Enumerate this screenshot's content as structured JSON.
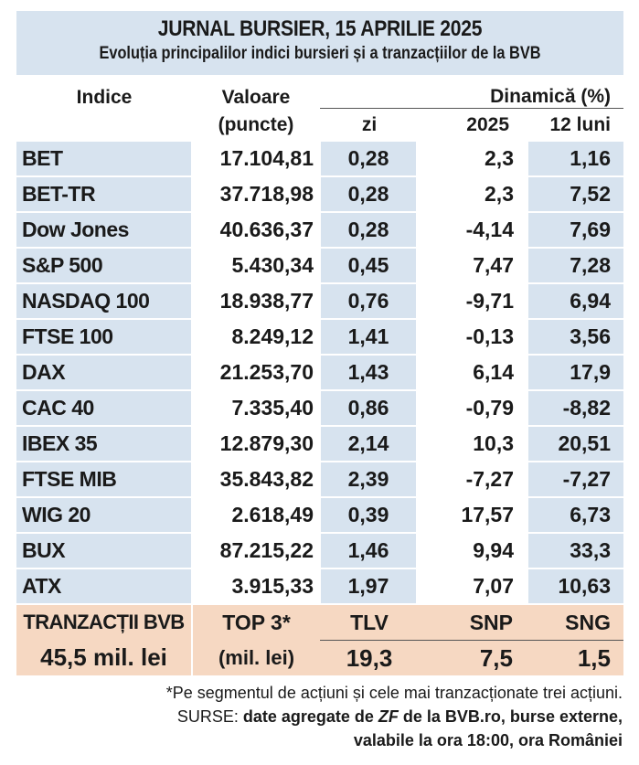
{
  "header": {
    "title": "JURNAL BURSIER, 15 APRILIE 2025",
    "subtitle": "Evoluția principalilor indici bursieri și a tranzacțiilor de la BVB"
  },
  "columns": {
    "indice": "Indice",
    "valoare": "Valoare",
    "valoare_unit": "(puncte)",
    "dinamica": "Dinamică (%)",
    "zi": "zi",
    "ytd": "2025",
    "m12": "12 luni"
  },
  "rows": [
    {
      "name": "BET",
      "value": "17.104,81",
      "zi": "0,28",
      "ytd": "2,3",
      "m12": "1,16"
    },
    {
      "name": "BET-TR",
      "value": "37.718,98",
      "zi": "0,28",
      "ytd": "2,3",
      "m12": "7,52"
    },
    {
      "name": "Dow Jones",
      "value": "40.636,37",
      "zi": "0,28",
      "ytd": "-4,14",
      "m12": "7,69"
    },
    {
      "name": "S&P 500",
      "value": "5.430,34",
      "zi": "0,45",
      "ytd": "7,47",
      "m12": "7,28"
    },
    {
      "name": "NASDAQ 100",
      "value": "18.938,77",
      "zi": "0,76",
      "ytd": "-9,71",
      "m12": "6,94"
    },
    {
      "name": "FTSE 100",
      "value": "8.249,12",
      "zi": "1,41",
      "ytd": "-0,13",
      "m12": "3,56"
    },
    {
      "name": "DAX",
      "value": "21.253,70",
      "zi": "1,43",
      "ytd": "6,14",
      "m12": "17,9"
    },
    {
      "name": "CAC 40",
      "value": "7.335,40",
      "zi": "0,86",
      "ytd": "-0,79",
      "m12": "-8,82"
    },
    {
      "name": "IBEX 35",
      "value": "12.879,30",
      "zi": "2,14",
      "ytd": "10,3",
      "m12": "20,51"
    },
    {
      "name": "FTSE MIB",
      "value": "35.843,82",
      "zi": "2,39",
      "ytd": "-7,27",
      "m12": "-7,27"
    },
    {
      "name": "WIG 20",
      "value": "2.618,49",
      "zi": "0,39",
      "ytd": "17,57",
      "m12": "6,73"
    },
    {
      "name": "BUX",
      "value": "87.215,22",
      "zi": "1,46",
      "ytd": "9,94",
      "m12": "33,3"
    },
    {
      "name": "ATX",
      "value": "3.915,33",
      "zi": "1,97",
      "ytd": "7,07",
      "m12": "10,63"
    }
  ],
  "trades": {
    "label": "TRANZACȚII BVB",
    "total": "45,5 mil. lei",
    "top_label": "TOP 3*",
    "top_unit": "(mil. lei)",
    "top": [
      {
        "symbol": "TLV",
        "value": "19,3"
      },
      {
        "symbol": "SNP",
        "value": "7,5"
      },
      {
        "symbol": "SNG",
        "value": "1,5"
      }
    ]
  },
  "footer": {
    "note": "*Pe segmentul de acțiuni și cele mai tranzacționate trei acțiuni.",
    "sources_prefix": "SURSE: ",
    "sources_a": "date agregate de ",
    "sources_zf": "ZF",
    "sources_b": " de la BVB.ro, burse externe,",
    "sources_line2": "valabile la ora 18:00, ora României"
  },
  "colors": {
    "blue_band": "#d7e3ef",
    "peach_band": "#f6d8c2"
  }
}
